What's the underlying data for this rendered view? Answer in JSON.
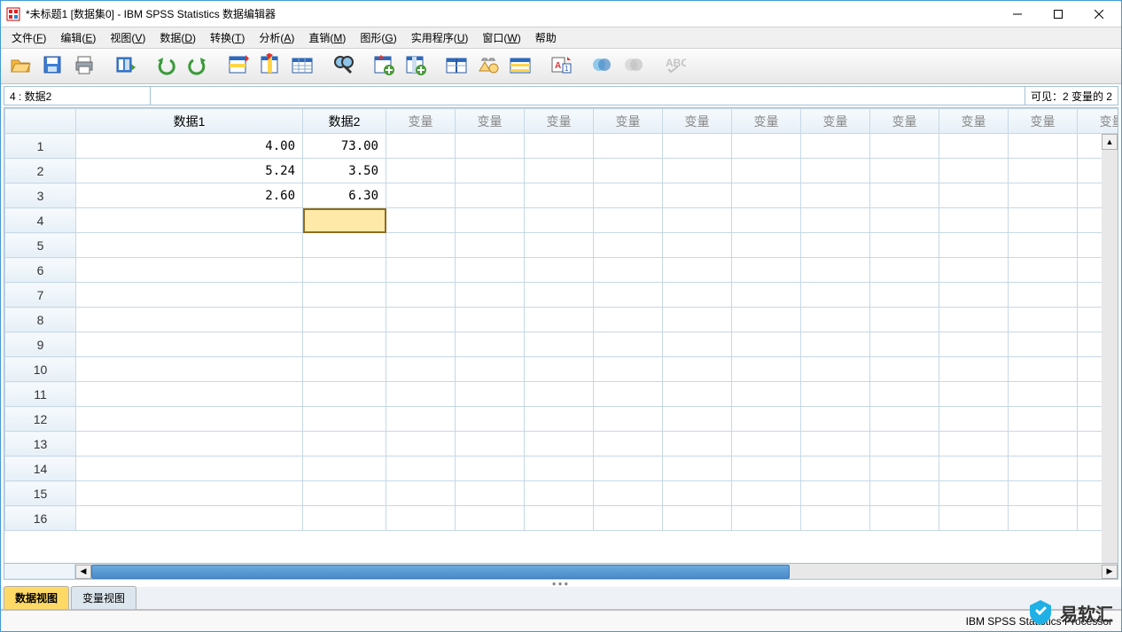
{
  "window": {
    "title": "*未标题1 [数据集0] - IBM SPSS Statistics 数据编辑器"
  },
  "menu": [
    {
      "label": "文件",
      "key": "F"
    },
    {
      "label": "编辑",
      "key": "E"
    },
    {
      "label": "视图",
      "key": "V"
    },
    {
      "label": "数据",
      "key": "D"
    },
    {
      "label": "转换",
      "key": "T"
    },
    {
      "label": "分析",
      "key": "A"
    },
    {
      "label": "直销",
      "key": "M"
    },
    {
      "label": "图形",
      "key": "G"
    },
    {
      "label": "实用程序",
      "key": "U"
    },
    {
      "label": "窗口",
      "key": "W"
    },
    {
      "label": "帮助",
      "key": ""
    }
  ],
  "toolbar_icons": [
    "open",
    "save",
    "print",
    "|",
    "recent",
    "|",
    "undo",
    "redo",
    "|",
    "goto-case",
    "goto-var",
    "variables",
    "|",
    "find",
    "|",
    "insert-case",
    "insert-var",
    "|",
    "split",
    "weight",
    "select",
    "|",
    "value-labels",
    "|",
    "sets",
    "sets2",
    "|",
    "spell"
  ],
  "info": {
    "left": "4 : 数据2",
    "right": "可见：2 变量的 2"
  },
  "columns": [
    {
      "label": "数据1",
      "width": "wide",
      "defined": true
    },
    {
      "label": "数据2",
      "width": "med",
      "defined": true
    },
    {
      "label": "变量",
      "defined": false
    },
    {
      "label": "变量",
      "defined": false
    },
    {
      "label": "变量",
      "defined": false
    },
    {
      "label": "变量",
      "defined": false
    },
    {
      "label": "变量",
      "defined": false
    },
    {
      "label": "变量",
      "defined": false
    },
    {
      "label": "变量",
      "defined": false
    },
    {
      "label": "变量",
      "defined": false
    },
    {
      "label": "变量",
      "defined": false
    },
    {
      "label": "变量",
      "defined": false
    },
    {
      "label": "变量",
      "defined": false
    }
  ],
  "rows": [
    {
      "n": 1,
      "cells": [
        "4.00",
        "73.00"
      ]
    },
    {
      "n": 2,
      "cells": [
        "5.24",
        "3.50"
      ]
    },
    {
      "n": 3,
      "cells": [
        "2.60",
        "6.30"
      ]
    },
    {
      "n": 4,
      "cells": [
        "",
        ""
      ],
      "selected_col": 1
    },
    {
      "n": 5,
      "cells": [
        "",
        ""
      ]
    },
    {
      "n": 6,
      "cells": [
        "",
        ""
      ]
    },
    {
      "n": 7,
      "cells": [
        "",
        ""
      ]
    },
    {
      "n": 8,
      "cells": [
        "",
        ""
      ]
    },
    {
      "n": 9,
      "cells": [
        "",
        ""
      ]
    },
    {
      "n": 10,
      "cells": [
        "",
        ""
      ]
    },
    {
      "n": 11,
      "cells": [
        "",
        ""
      ]
    },
    {
      "n": 12,
      "cells": [
        "",
        ""
      ]
    },
    {
      "n": 13,
      "cells": [
        "",
        ""
      ]
    },
    {
      "n": 14,
      "cells": [
        "",
        ""
      ]
    },
    {
      "n": 15,
      "cells": [
        "",
        ""
      ]
    },
    {
      "n": 16,
      "cells": [
        "",
        ""
      ]
    }
  ],
  "hscroll": {
    "thumb_width_pct": 67
  },
  "tabs": [
    {
      "label": "数据视图",
      "active": true
    },
    {
      "label": "变量视图",
      "active": false
    }
  ],
  "status": {
    "processor": "IBM SPSS Statistics Processor"
  },
  "watermark": {
    "text": "易软汇"
  }
}
